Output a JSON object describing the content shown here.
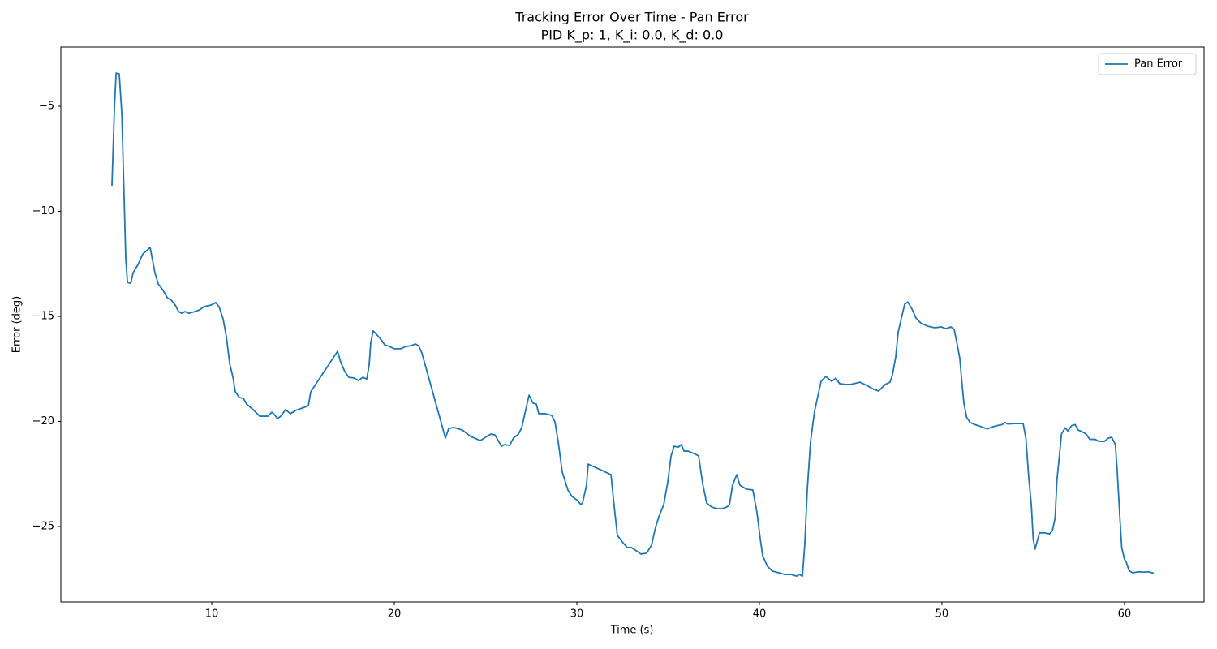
{
  "chart_data": {
    "type": "line",
    "title": "Tracking Error Over Time - Pan Error",
    "subtitle": "PID K_p: 1, K_i: 0.0, K_d: 0.0",
    "x_label": "Time (s)",
    "y_label": "Error (deg)",
    "xlim": [
      1.73,
      64.36
    ],
    "ylim": [
      -28.59,
      -2.18
    ],
    "xticks": [
      10,
      20,
      30,
      40,
      50,
      60
    ],
    "yticks": [
      {
        "value": -25,
        "label": "−25"
      },
      {
        "value": -20,
        "label": "−20"
      },
      {
        "value": -15,
        "label": "−15"
      },
      {
        "value": -10,
        "label": "−10"
      },
      {
        "value": -5,
        "label": "−5"
      }
    ],
    "grid": false,
    "legend": "upper right",
    "x": [
      4.53,
      4.67,
      4.76,
      4.93,
      5.07,
      5.29,
      5.38,
      5.56,
      5.69,
      5.96,
      6.22,
      6.44,
      6.62,
      6.89,
      7.07,
      7.33,
      7.56,
      7.78,
      8.0,
      8.18,
      8.36,
      8.53,
      8.76,
      9.07,
      9.33,
      9.56,
      9.96,
      10.22,
      10.4,
      10.62,
      10.8,
      10.98,
      11.16,
      11.29,
      11.51,
      11.73,
      11.91,
      12.27,
      12.62,
      13.07,
      13.29,
      13.42,
      13.6,
      13.78,
      14.04,
      14.31,
      14.58,
      14.84,
      15.29,
      15.42,
      16.89,
      17.07,
      17.29,
      17.51,
      17.78,
      18.04,
      18.27,
      18.49,
      18.62,
      18.71,
      18.84,
      19.07,
      19.29,
      19.47,
      19.73,
      20.0,
      20.36,
      20.62,
      20.89,
      21.16,
      21.33,
      21.51,
      22.8,
      22.98,
      23.29,
      23.73,
      24.18,
      24.71,
      25.07,
      25.29,
      25.51,
      25.87,
      26.04,
      26.31,
      26.53,
      26.8,
      26.98,
      27.38,
      27.6,
      27.78,
      27.91,
      28.27,
      28.62,
      28.8,
      28.98,
      29.2,
      29.51,
      29.73,
      30.04,
      30.22,
      30.31,
      30.53,
      30.62,
      31.87,
      32.04,
      32.22,
      32.49,
      32.76,
      32.98,
      33.2,
      33.51,
      33.82,
      34.09,
      34.31,
      34.49,
      34.76,
      34.98,
      35.16,
      35.33,
      35.56,
      35.73,
      35.87,
      36.09,
      36.44,
      36.67,
      36.89,
      37.11,
      37.38,
      37.69,
      37.96,
      38.22,
      38.36,
      38.53,
      38.76,
      38.93,
      39.29,
      39.64,
      39.87,
      40.04,
      40.18,
      40.44,
      40.71,
      41.07,
      41.38,
      41.73,
      42.04,
      42.18,
      42.36,
      42.49,
      42.62,
      42.8,
      43.02,
      43.38,
      43.64,
      43.96,
      44.18,
      44.4,
      44.71,
      44.98,
      45.51,
      45.87,
      46.27,
      46.53,
      46.89,
      47.16,
      47.29,
      47.47,
      47.6,
      47.78,
      47.96,
      48.13,
      48.36,
      48.58,
      48.84,
      49.2,
      49.6,
      49.96,
      50.22,
      50.49,
      50.67,
      50.84,
      50.98,
      51.1,
      51.2,
      51.35,
      51.55,
      51.8,
      52.0,
      52.3,
      52.5,
      52.8,
      53.0,
      53.3,
      53.45,
      53.6,
      54.0,
      54.3,
      54.45,
      54.6,
      54.75,
      54.9,
      55.0,
      55.1,
      55.25,
      55.35,
      55.6,
      55.9,
      56.05,
      56.2,
      56.3,
      56.45,
      56.55,
      56.75,
      56.9,
      57.1,
      57.3,
      57.45,
      57.7,
      57.9,
      58.1,
      58.4,
      58.6,
      58.9,
      59.1,
      59.3,
      59.5,
      59.6,
      59.75,
      59.85,
      60.0,
      60.1,
      60.25,
      60.45,
      60.8,
      61.0,
      61.3,
      61.6
    ],
    "series": [
      {
        "name": "Pan Error",
        "color": "#1f77b4",
        "values": [
          -8.78,
          -4.96,
          -3.42,
          -3.46,
          -5.35,
          -12.3,
          -13.38,
          -13.42,
          -12.92,
          -12.53,
          -12.03,
          -11.87,
          -11.72,
          -12.95,
          -13.46,
          -13.76,
          -14.11,
          -14.23,
          -14.46,
          -14.77,
          -14.85,
          -14.77,
          -14.85,
          -14.77,
          -14.69,
          -14.54,
          -14.46,
          -14.34,
          -14.54,
          -15.12,
          -15.97,
          -17.24,
          -17.9,
          -18.59,
          -18.86,
          -18.9,
          -19.17,
          -19.44,
          -19.75,
          -19.75,
          -19.56,
          -19.67,
          -19.86,
          -19.75,
          -19.44,
          -19.63,
          -19.48,
          -19.4,
          -19.25,
          -18.59,
          -16.66,
          -17.2,
          -17.63,
          -17.9,
          -17.93,
          -18.05,
          -17.9,
          -17.98,
          -17.32,
          -16.24,
          -15.69,
          -15.9,
          -16.12,
          -16.35,
          -16.43,
          -16.54,
          -16.54,
          -16.43,
          -16.4,
          -16.31,
          -16.4,
          -16.74,
          -20.79,
          -20.33,
          -20.29,
          -20.41,
          -20.71,
          -20.91,
          -20.71,
          -20.6,
          -20.64,
          -21.18,
          -21.1,
          -21.14,
          -20.79,
          -20.6,
          -20.29,
          -18.75,
          -19.13,
          -19.17,
          -19.63,
          -19.63,
          -19.71,
          -20.02,
          -20.98,
          -22.41,
          -23.26,
          -23.57,
          -23.76,
          -23.96,
          -23.88,
          -23.03,
          -22.03,
          -22.53,
          -24.0,
          -25.42,
          -25.73,
          -26.0,
          -26.0,
          -26.12,
          -26.31,
          -26.27,
          -25.89,
          -25.04,
          -24.54,
          -23.96,
          -22.88,
          -21.64,
          -21.18,
          -21.22,
          -21.1,
          -21.41,
          -21.41,
          -21.53,
          -21.64,
          -22.95,
          -23.88,
          -24.07,
          -24.15,
          -24.15,
          -24.07,
          -23.96,
          -23.03,
          -22.53,
          -23.03,
          -23.22,
          -23.26,
          -24.34,
          -25.54,
          -26.39,
          -26.89,
          -27.12,
          -27.2,
          -27.28,
          -27.28,
          -27.36,
          -27.28,
          -27.36,
          -25.81,
          -23.3,
          -20.98,
          -19.52,
          -18.09,
          -17.86,
          -18.09,
          -17.94,
          -18.2,
          -18.24,
          -18.24,
          -18.13,
          -18.28,
          -18.47,
          -18.55,
          -18.24,
          -18.13,
          -17.78,
          -16.93,
          -15.77,
          -15.08,
          -14.42,
          -14.31,
          -14.65,
          -15.08,
          -15.31,
          -15.46,
          -15.54,
          -15.5,
          -15.58,
          -15.5,
          -15.62,
          -16.35,
          -17.0,
          -18.2,
          -19.1,
          -19.8,
          -20.05,
          -20.15,
          -20.2,
          -20.3,
          -20.35,
          -20.25,
          -20.2,
          -20.15,
          -20.05,
          -20.12,
          -20.1,
          -20.1,
          -20.1,
          -20.8,
          -22.6,
          -24.0,
          -25.6,
          -26.08,
          -25.6,
          -25.3,
          -25.3,
          -25.35,
          -25.2,
          -24.6,
          -22.8,
          -21.5,
          -20.6,
          -20.3,
          -20.45,
          -20.2,
          -20.15,
          -20.4,
          -20.5,
          -20.6,
          -20.85,
          -20.85,
          -20.95,
          -20.95,
          -20.8,
          -20.75,
          -21.1,
          -22.3,
          -24.6,
          -26.0,
          -26.55,
          -26.7,
          -27.1,
          -27.2,
          -27.15,
          -27.17,
          -27.15,
          -27.22
        ]
      }
    ]
  }
}
